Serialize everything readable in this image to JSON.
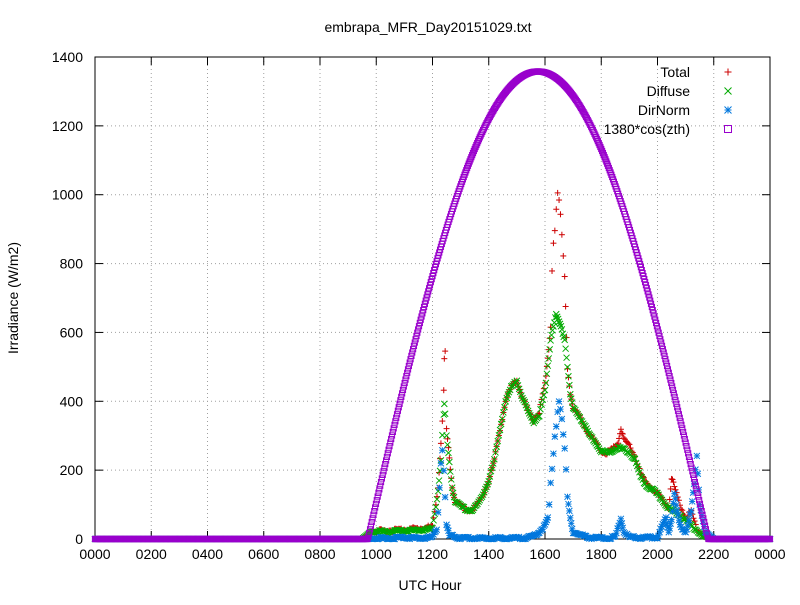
{
  "chart_data": {
    "type": "scatter",
    "title": "embrapa_MFR_Day20151029.txt",
    "xlabel": "UTC Hour",
    "ylabel": "Irradiance (W/m2)",
    "xlim": [
      0,
      2400
    ],
    "ylim": [
      0,
      1400
    ],
    "grid": true,
    "legend_position": "top-right",
    "x_ticks": [
      "0000",
      "0200",
      "0400",
      "0600",
      "0800",
      "1000",
      "1200",
      "1400",
      "1600",
      "1800",
      "2000",
      "2200",
      "0000"
    ],
    "y_ticks": [
      "0",
      "200",
      "400",
      "600",
      "800",
      "1000",
      "1200",
      "1400"
    ],
    "series": [
      {
        "name": "Total",
        "marker": "plus",
        "color": "#cc0000",
        "points": [
          [
            0,
            0
          ],
          [
            950,
            0
          ],
          [
            980,
            20
          ],
          [
            1050,
            25
          ],
          [
            1100,
            28
          ],
          [
            1150,
            30
          ],
          [
            1200,
            35
          ],
          [
            1220,
            150
          ],
          [
            1230,
            280
          ],
          [
            1235,
            340
          ],
          [
            1240,
            430
          ],
          [
            1242,
            520
          ],
          [
            1245,
            540
          ],
          [
            1250,
            320
          ],
          [
            1260,
            230
          ],
          [
            1270,
            150
          ],
          [
            1280,
            110
          ],
          [
            1300,
            95
          ],
          [
            1320,
            85
          ],
          [
            1340,
            82
          ],
          [
            1360,
            100
          ],
          [
            1380,
            130
          ],
          [
            1400,
            170
          ],
          [
            1420,
            230
          ],
          [
            1440,
            320
          ],
          [
            1460,
            400
          ],
          [
            1480,
            440
          ],
          [
            1500,
            460
          ],
          [
            1520,
            410
          ],
          [
            1540,
            370
          ],
          [
            1560,
            345
          ],
          [
            1580,
            370
          ],
          [
            1600,
            450
          ],
          [
            1610,
            520
          ],
          [
            1620,
            620
          ],
          [
            1625,
            780
          ],
          [
            1630,
            860
          ],
          [
            1635,
            900
          ],
          [
            1640,
            960
          ],
          [
            1645,
            1000
          ],
          [
            1650,
            980
          ],
          [
            1655,
            940
          ],
          [
            1660,
            880
          ],
          [
            1665,
            820
          ],
          [
            1670,
            760
          ],
          [
            1680,
            500
          ],
          [
            1690,
            420
          ],
          [
            1700,
            380
          ],
          [
            1720,
            360
          ],
          [
            1740,
            330
          ],
          [
            1760,
            300
          ],
          [
            1780,
            280
          ],
          [
            1800,
            255
          ],
          [
            1820,
            250
          ],
          [
            1840,
            260
          ],
          [
            1860,
            280
          ],
          [
            1870,
            320
          ],
          [
            1880,
            290
          ],
          [
            1900,
            270
          ],
          [
            1920,
            240
          ],
          [
            1940,
            190
          ],
          [
            1960,
            160
          ],
          [
            1980,
            150
          ],
          [
            2000,
            130
          ],
          [
            2020,
            110
          ],
          [
            2040,
            90
          ],
          [
            2050,
            180
          ],
          [
            2060,
            150
          ],
          [
            2080,
            100
          ],
          [
            2100,
            60
          ],
          [
            2120,
            80
          ],
          [
            2140,
            30
          ],
          [
            2160,
            10
          ],
          [
            2200,
            0
          ],
          [
            2400,
            0
          ]
        ]
      },
      {
        "name": "Diffuse",
        "marker": "cross",
        "color": "#00aa00",
        "points": [
          [
            0,
            0
          ],
          [
            950,
            0
          ],
          [
            980,
            20
          ],
          [
            1050,
            22
          ],
          [
            1100,
            25
          ],
          [
            1150,
            25
          ],
          [
            1200,
            30
          ],
          [
            1220,
            140
          ],
          [
            1230,
            230
          ],
          [
            1235,
            300
          ],
          [
            1240,
            360
          ],
          [
            1242,
            390
          ],
          [
            1245,
            360
          ],
          [
            1250,
            300
          ],
          [
            1260,
            220
          ],
          [
            1270,
            150
          ],
          [
            1280,
            110
          ],
          [
            1300,
            95
          ],
          [
            1320,
            85
          ],
          [
            1340,
            82
          ],
          [
            1360,
            100
          ],
          [
            1380,
            130
          ],
          [
            1400,
            170
          ],
          [
            1420,
            230
          ],
          [
            1440,
            320
          ],
          [
            1460,
            400
          ],
          [
            1480,
            440
          ],
          [
            1500,
            460
          ],
          [
            1520,
            410
          ],
          [
            1540,
            370
          ],
          [
            1560,
            340
          ],
          [
            1580,
            360
          ],
          [
            1600,
            430
          ],
          [
            1610,
            500
          ],
          [
            1620,
            580
          ],
          [
            1630,
            620
          ],
          [
            1640,
            650
          ],
          [
            1650,
            630
          ],
          [
            1660,
            610
          ],
          [
            1670,
            580
          ],
          [
            1680,
            500
          ],
          [
            1690,
            420
          ],
          [
            1700,
            380
          ],
          [
            1720,
            360
          ],
          [
            1740,
            330
          ],
          [
            1760,
            300
          ],
          [
            1780,
            280
          ],
          [
            1800,
            255
          ],
          [
            1820,
            250
          ],
          [
            1840,
            255
          ],
          [
            1860,
            265
          ],
          [
            1880,
            260
          ],
          [
            1900,
            250
          ],
          [
            1920,
            230
          ],
          [
            1940,
            180
          ],
          [
            1960,
            155
          ],
          [
            1980,
            145
          ],
          [
            2000,
            130
          ],
          [
            2020,
            110
          ],
          [
            2040,
            90
          ],
          [
            2060,
            80
          ],
          [
            2080,
            70
          ],
          [
            2100,
            55
          ],
          [
            2120,
            40
          ],
          [
            2140,
            25
          ],
          [
            2160,
            10
          ],
          [
            2200,
            0
          ],
          [
            2400,
            0
          ]
        ]
      },
      {
        "name": "DirNorm",
        "marker": "star",
        "color": "#0077dd",
        "points": [
          [
            0,
            0
          ],
          [
            950,
            0
          ],
          [
            1050,
            2
          ],
          [
            1100,
            5
          ],
          [
            1150,
            2
          ],
          [
            1200,
            5
          ],
          [
            1215,
            30
          ],
          [
            1220,
            80
          ],
          [
            1225,
            150
          ],
          [
            1230,
            220
          ],
          [
            1235,
            260
          ],
          [
            1240,
            200
          ],
          [
            1245,
            120
          ],
          [
            1250,
            40
          ],
          [
            1260,
            10
          ],
          [
            1300,
            2
          ],
          [
            1400,
            2
          ],
          [
            1500,
            2
          ],
          [
            1550,
            5
          ],
          [
            1580,
            20
          ],
          [
            1600,
            40
          ],
          [
            1610,
            60
          ],
          [
            1615,
            100
          ],
          [
            1620,
            160
          ],
          [
            1625,
            200
          ],
          [
            1630,
            250
          ],
          [
            1635,
            300
          ],
          [
            1640,
            330
          ],
          [
            1645,
            370
          ],
          [
            1650,
            400
          ],
          [
            1655,
            380
          ],
          [
            1660,
            350
          ],
          [
            1665,
            300
          ],
          [
            1670,
            260
          ],
          [
            1675,
            200
          ],
          [
            1680,
            120
          ],
          [
            1690,
            60
          ],
          [
            1700,
            20
          ],
          [
            1750,
            5
          ],
          [
            1800,
            2
          ],
          [
            1850,
            5
          ],
          [
            1870,
            60
          ],
          [
            1880,
            20
          ],
          [
            1900,
            5
          ],
          [
            1950,
            3
          ],
          [
            2000,
            5
          ],
          [
            2030,
            60
          ],
          [
            2040,
            20
          ],
          [
            2050,
            60
          ],
          [
            2060,
            130
          ],
          [
            2070,
            80
          ],
          [
            2080,
            40
          ],
          [
            2100,
            20
          ],
          [
            2120,
            80
          ],
          [
            2130,
            160
          ],
          [
            2135,
            200
          ],
          [
            2140,
            240
          ],
          [
            2150,
            100
          ],
          [
            2170,
            20
          ],
          [
            2200,
            0
          ],
          [
            2400,
            0
          ]
        ]
      },
      {
        "name": "1380*cos(zth)",
        "marker": "square",
        "color": "#9900cc",
        "formula": {
          "amplitude": 1380,
          "peak": 1358,
          "peak_x": 1575,
          "start_x": 970,
          "end_x": 2180
        }
      }
    ]
  }
}
